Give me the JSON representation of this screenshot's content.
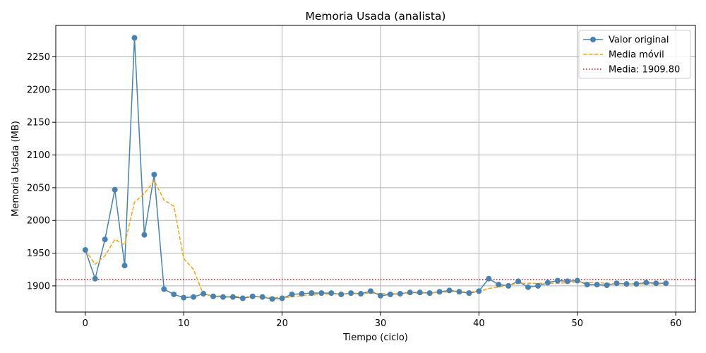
{
  "chart_data": {
    "type": "line",
    "title": "Memoria Usada (analista)",
    "xlabel": "Tiempo (ciclo)",
    "ylabel": "Memoria Usada (MB)",
    "xlim": [
      -3,
      62
    ],
    "ylim": [
      1860,
      2298
    ],
    "xticks": [
      0,
      10,
      20,
      30,
      40,
      50,
      60
    ],
    "yticks": [
      1900,
      1950,
      2000,
      2050,
      2100,
      2150,
      2200,
      2250
    ],
    "grid": true,
    "legend_position": "upper-right",
    "x": [
      0,
      1,
      2,
      3,
      4,
      5,
      6,
      7,
      8,
      9,
      10,
      11,
      12,
      13,
      14,
      15,
      16,
      17,
      18,
      19,
      20,
      21,
      22,
      23,
      24,
      25,
      26,
      27,
      28,
      29,
      30,
      31,
      32,
      33,
      34,
      35,
      36,
      37,
      38,
      39,
      40,
      41,
      42,
      43,
      44,
      45,
      46,
      47,
      48,
      49,
      50,
      51,
      52,
      53,
      54,
      55,
      56,
      57,
      58,
      59
    ],
    "series": [
      {
        "name": "Valor original",
        "style": "line-marker",
        "color": "#4682b4",
        "values": [
          1955,
          1911,
          1971,
          2047,
          1931,
          2279,
          1978,
          2070,
          1895,
          1887,
          1882,
          1883,
          1888,
          1884,
          1883,
          1883,
          1881,
          1884,
          1883,
          1880,
          1881,
          1887,
          1888,
          1889,
          1889,
          1889,
          1887,
          1889,
          1888,
          1892,
          1885,
          1887,
          1888,
          1890,
          1890,
          1889,
          1891,
          1893,
          1891,
          1889,
          1892,
          1911,
          1902,
          1900,
          1907,
          1898,
          1900,
          1905,
          1908,
          1907,
          1908,
          1902,
          1902,
          1901,
          1904,
          1903,
          1903,
          1905,
          1904,
          1904
        ]
      },
      {
        "name": "Media móvil",
        "style": "dashed",
        "color": "#ffa500",
        "values": [
          1955,
          1933,
          1946,
          1971,
          1963,
          2028,
          2041,
          2061,
          2031,
          2022,
          1942,
          1925,
          1887,
          1885,
          1884,
          1884,
          1884,
          1883,
          1883,
          1882,
          1882,
          1883,
          1885,
          1886,
          1887,
          1888,
          1888,
          1888,
          1888,
          1889,
          1888,
          1888,
          1888,
          1889,
          1889,
          1889,
          1890,
          1891,
          1891,
          1891,
          1891,
          1896,
          1898,
          1901,
          1904,
          1904,
          1904,
          1904,
          1904,
          1905,
          1906,
          1905,
          1905,
          1904,
          1903,
          1903,
          1903,
          1903,
          1903,
          1903
        ]
      },
      {
        "name": "Media: 1909.80",
        "style": "dotted-hline",
        "color": "#ff0000",
        "value": 1909.8
      }
    ]
  }
}
